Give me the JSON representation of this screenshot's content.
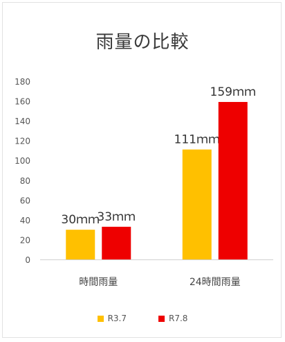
{
  "chart_data": {
    "type": "bar",
    "title": "雨量の比較",
    "categories": [
      "時間雨量",
      "24時間雨量"
    ],
    "series": [
      {
        "name": "R3.7",
        "color": "#ffc000",
        "values": [
          30,
          111
        ],
        "labels": [
          "30ｍｍ",
          "111ｍｍ"
        ]
      },
      {
        "name": "R7.8",
        "color": "#ee0000",
        "values": [
          33,
          159
        ],
        "labels": [
          "33ｍｍ",
          "159ｍｍ"
        ]
      }
    ],
    "ylim": [
      0,
      180
    ],
    "yticks": [
      "0",
      "20",
      "40",
      "60",
      "80",
      "100",
      "120",
      "140",
      "160",
      "180"
    ],
    "grid": false,
    "legend_position": "bottom"
  }
}
